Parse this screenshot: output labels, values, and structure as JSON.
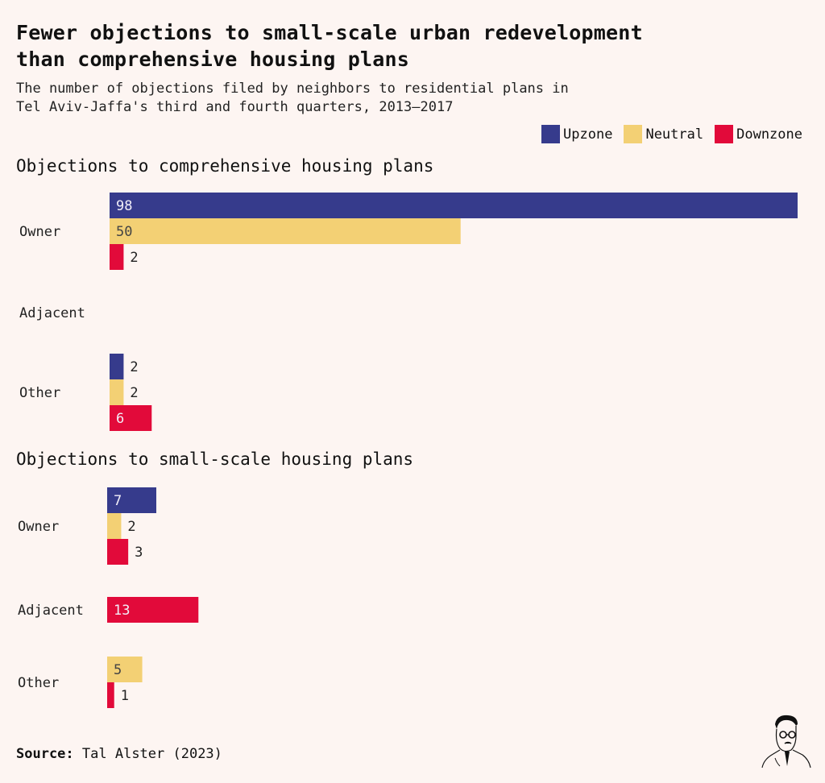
{
  "header": {
    "title_line1": "Fewer objections to small-scale urban redevelopment",
    "title_line2": "than comprehensive housing plans",
    "subtitle_line1": "The number of objections filed by neighbors to residential plans in",
    "subtitle_line2": "Tel Aviv-Jaffa's third and fourth quarters, 2013–2017"
  },
  "legend": [
    {
      "name": "Upzone",
      "color": "#363b8c"
    },
    {
      "name": "Neutral",
      "color": "#f3d074"
    },
    {
      "name": "Downzone",
      "color": "#e20a3a"
    }
  ],
  "footer": {
    "source_label": "Source:",
    "source_text": "Tal Alster (2023)",
    "logo_icon": "portrait-illustration-icon"
  },
  "chart_data": [
    {
      "type": "bar",
      "orientation": "horizontal",
      "title": "Objections to comprehensive housing plans",
      "categories": [
        "Owner",
        "Adjacent",
        "Other"
      ],
      "series": [
        {
          "name": "Upzone",
          "values": [
            98,
            null,
            2
          ]
        },
        {
          "name": "Neutral",
          "values": [
            50,
            null,
            2
          ]
        },
        {
          "name": "Downzone",
          "values": [
            2,
            null,
            6
          ]
        }
      ],
      "xlim": [
        0,
        98
      ],
      "grid": false
    },
    {
      "type": "bar",
      "orientation": "horizontal",
      "title": "Objections to small-scale housing plans",
      "categories": [
        "Owner",
        "Adjacent",
        "Other"
      ],
      "series": [
        {
          "name": "Upzone",
          "values": [
            7,
            null,
            null
          ]
        },
        {
          "name": "Neutral",
          "values": [
            2,
            null,
            5
          ]
        },
        {
          "name": "Downzone",
          "values": [
            3,
            13,
            1
          ]
        }
      ],
      "xlim": [
        0,
        98
      ],
      "grid": false
    }
  ]
}
